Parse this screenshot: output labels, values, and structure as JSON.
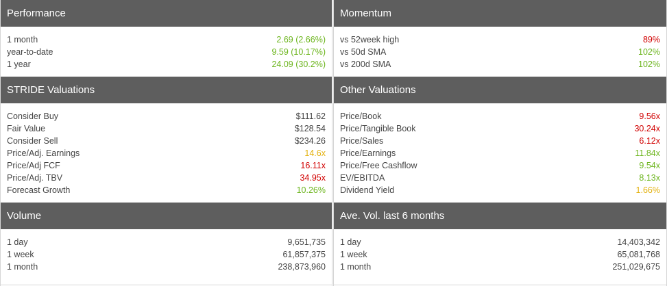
{
  "performance": {
    "title": "Performance",
    "rows": [
      {
        "label": "1 month",
        "value": "2.69 (2.66%)",
        "tone": "green"
      },
      {
        "label": "year-to-date",
        "value": "9.59 (10.17%)",
        "tone": "green"
      },
      {
        "label": "1 year",
        "value": "24.09 (30.2%)",
        "tone": "green"
      }
    ]
  },
  "momentum": {
    "title": "Momentum",
    "rows": [
      {
        "label": "vs 52week high",
        "value": "89%",
        "tone": "red"
      },
      {
        "label": "vs 50d SMA",
        "value": "102%",
        "tone": "green"
      },
      {
        "label": "vs 200d SMA",
        "value": "102%",
        "tone": "green"
      }
    ]
  },
  "stride": {
    "title": "STRIDE Valuations",
    "rows": [
      {
        "label": "Consider Buy",
        "value": "$111.62",
        "tone": "plain"
      },
      {
        "label": "Fair Value",
        "value": "$128.54",
        "tone": "plain"
      },
      {
        "label": "Consider Sell",
        "value": "$234.26",
        "tone": "plain"
      },
      {
        "label": "Price/Adj. Earnings",
        "value": "14.6x",
        "tone": "yellow"
      },
      {
        "label": "Price/Adj FCF",
        "value": "16.11x",
        "tone": "red"
      },
      {
        "label": "Price/Adj. TBV",
        "value": "34.95x",
        "tone": "red"
      },
      {
        "label": "Forecast Growth",
        "value": "10.26%",
        "tone": "green"
      }
    ]
  },
  "other": {
    "title": "Other Valuations",
    "rows": [
      {
        "label": "Price/Book",
        "value": "9.56x",
        "tone": "red"
      },
      {
        "label": "Price/Tangible Book",
        "value": "30.24x",
        "tone": "red"
      },
      {
        "label": "Price/Sales",
        "value": "6.12x",
        "tone": "red"
      },
      {
        "label": "Price/Earnings",
        "value": "11.84x",
        "tone": "green"
      },
      {
        "label": "Price/Free Cashflow",
        "value": "9.54x",
        "tone": "green"
      },
      {
        "label": "EV/EBITDA",
        "value": "8.13x",
        "tone": "green"
      },
      {
        "label": "Dividend Yield",
        "value": "1.66%",
        "tone": "yellow"
      }
    ]
  },
  "volume": {
    "title": "Volume",
    "rows": [
      {
        "label": "1 day",
        "value": "9,651,735",
        "tone": "plain"
      },
      {
        "label": "1 week",
        "value": "61,857,375",
        "tone": "plain"
      },
      {
        "label": "1 month",
        "value": "238,873,960",
        "tone": "plain"
      }
    ]
  },
  "avevol": {
    "title": "Ave. Vol. last 6 months",
    "rows": [
      {
        "label": "1 day",
        "value": "14,403,342",
        "tone": "plain"
      },
      {
        "label": "1 week",
        "value": "65,081,768",
        "tone": "plain"
      },
      {
        "label": "1 month",
        "value": "251,029,675",
        "tone": "plain"
      }
    ]
  },
  "colors": {
    "header_bg": "#5e5e5e",
    "green": "#6cb51d",
    "red": "#d10000",
    "yellow": "#e3b10e",
    "text": "#444444"
  }
}
